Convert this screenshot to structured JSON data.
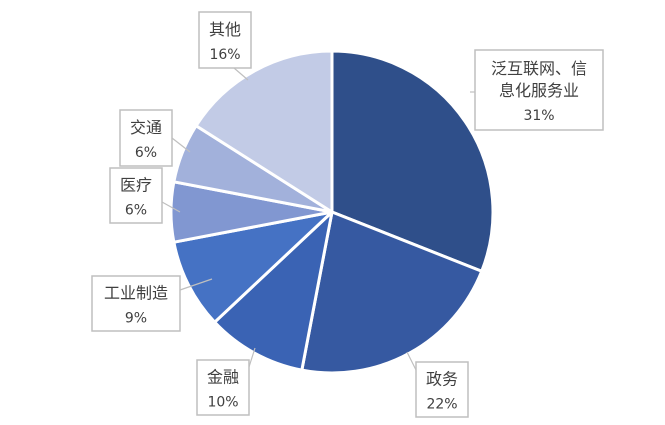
{
  "chart_data": {
    "type": "pie",
    "title": "",
    "slices": [
      {
        "name": "泛互联网、信息化服务业",
        "lines": [
          "泛互联网、信",
          "息化服务业"
        ],
        "value": 31,
        "label": "31%",
        "color": "#2f4f8a"
      },
      {
        "name": "政务",
        "lines": [
          "政务"
        ],
        "value": 22,
        "label": "22%",
        "color": "#3659a1"
      },
      {
        "name": "金融",
        "lines": [
          "金融"
        ],
        "value": 10,
        "label": "10%",
        "color": "#3a63b4"
      },
      {
        "name": "工业制造",
        "lines": [
          "工业制造"
        ],
        "value": 9,
        "label": "9%",
        "color": "#4572c4"
      },
      {
        "name": "医疗",
        "lines": [
          "医疗"
        ],
        "value": 6,
        "label": "6%",
        "color": "#8197d1"
      },
      {
        "name": "交通",
        "lines": [
          "交通"
        ],
        "value": 6,
        "label": "6%",
        "color": "#a2b1db"
      },
      {
        "name": "其他",
        "lines": [
          "其他"
        ],
        "value": 16,
        "label": "16%",
        "color": "#c2cbe6"
      }
    ]
  }
}
